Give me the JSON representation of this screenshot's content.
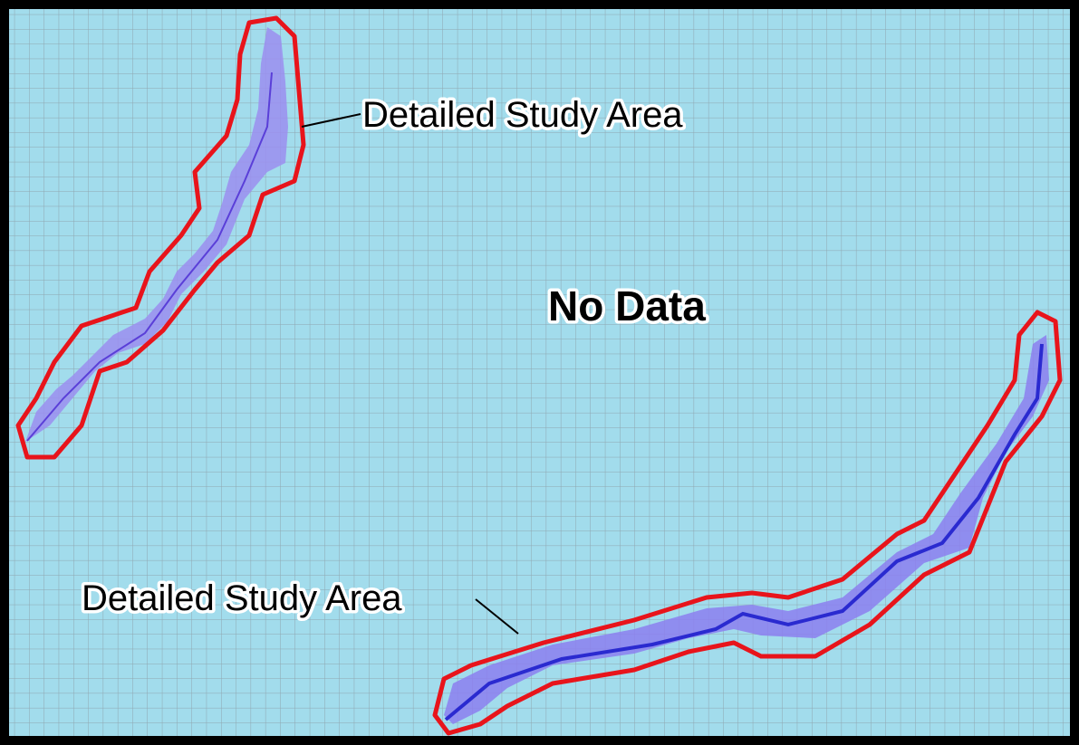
{
  "map": {
    "labels": [
      "Detailed Study Area",
      "Detailed Study Area",
      "No Data"
    ]
  }
}
